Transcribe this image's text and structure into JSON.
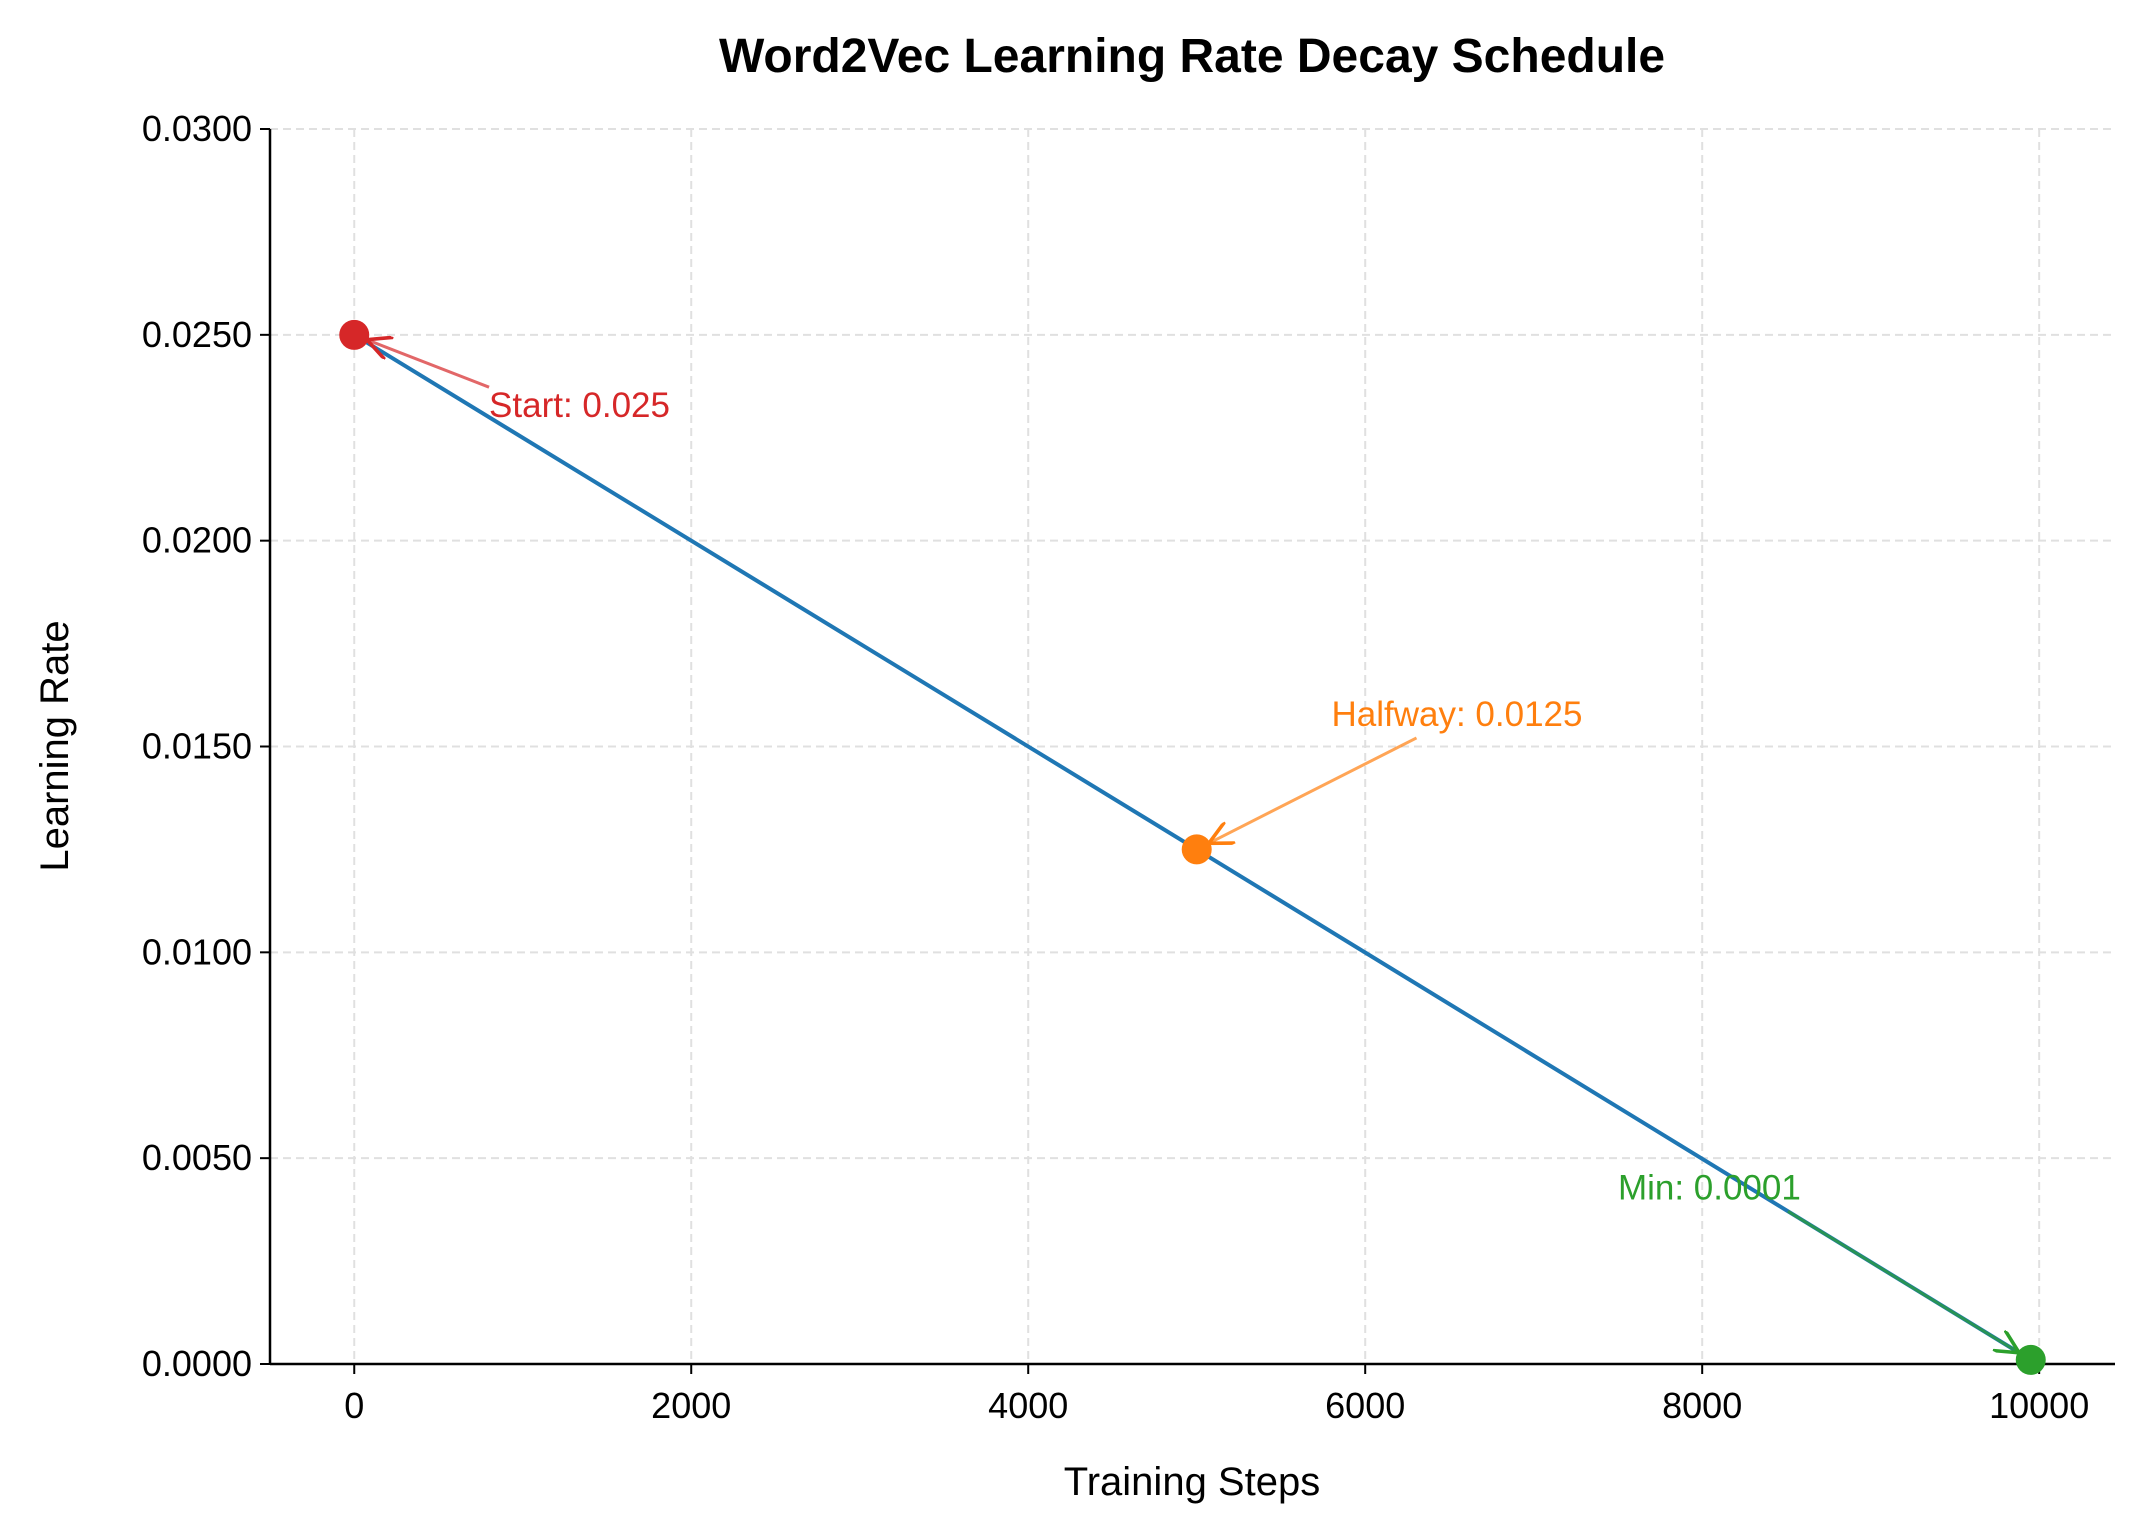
{
  "chart_data": {
    "type": "line",
    "title": "Word2Vec Learning Rate Decay Schedule",
    "xlabel": "Training Steps",
    "ylabel": "Learning Rate",
    "xlim": [
      -500,
      10450
    ],
    "ylim": [
      0,
      0.03
    ],
    "xticks": [
      0,
      2000,
      4000,
      6000,
      8000,
      10000
    ],
    "xtick_labels": [
      "0",
      "2000",
      "4000",
      "6000",
      "8000",
      "10000"
    ],
    "yticks": [
      0,
      0.005,
      0.01,
      0.015,
      0.02,
      0.025,
      0.03
    ],
    "ytick_labels": [
      "0.0000",
      "0.0050",
      "0.0100",
      "0.0150",
      "0.0200",
      "0.0250",
      "0.0300"
    ],
    "grid": true,
    "series": [
      {
        "color": "#1f77b4",
        "x": [
          0,
          5000,
          9950
        ],
        "y": [
          0.025,
          0.0125,
          0.0001
        ]
      }
    ],
    "markers": [
      {
        "x": 0,
        "y": 0.025,
        "color": "#d62728"
      },
      {
        "x": 5000,
        "y": 0.0125,
        "color": "#ff7f0e"
      },
      {
        "x": 9950,
        "y": 0.0001,
        "color": "#2ca02c"
      }
    ],
    "annotations": [
      {
        "text": "Start: 0.025",
        "x": 0,
        "y": 0.025,
        "text_x": 800,
        "text_y": 0.023,
        "color": "#d62728"
      },
      {
        "text": "Halfway: 0.0125",
        "x": 5000,
        "y": 0.0125,
        "text_x": 5800,
        "text_y": 0.0155,
        "color": "#ff7f0e"
      },
      {
        "text": "Min: 0.0001",
        "x": 9950,
        "y": 0.0001,
        "text_x": 7500,
        "text_y": 0.004,
        "color": "#2ca02c"
      }
    ]
  }
}
